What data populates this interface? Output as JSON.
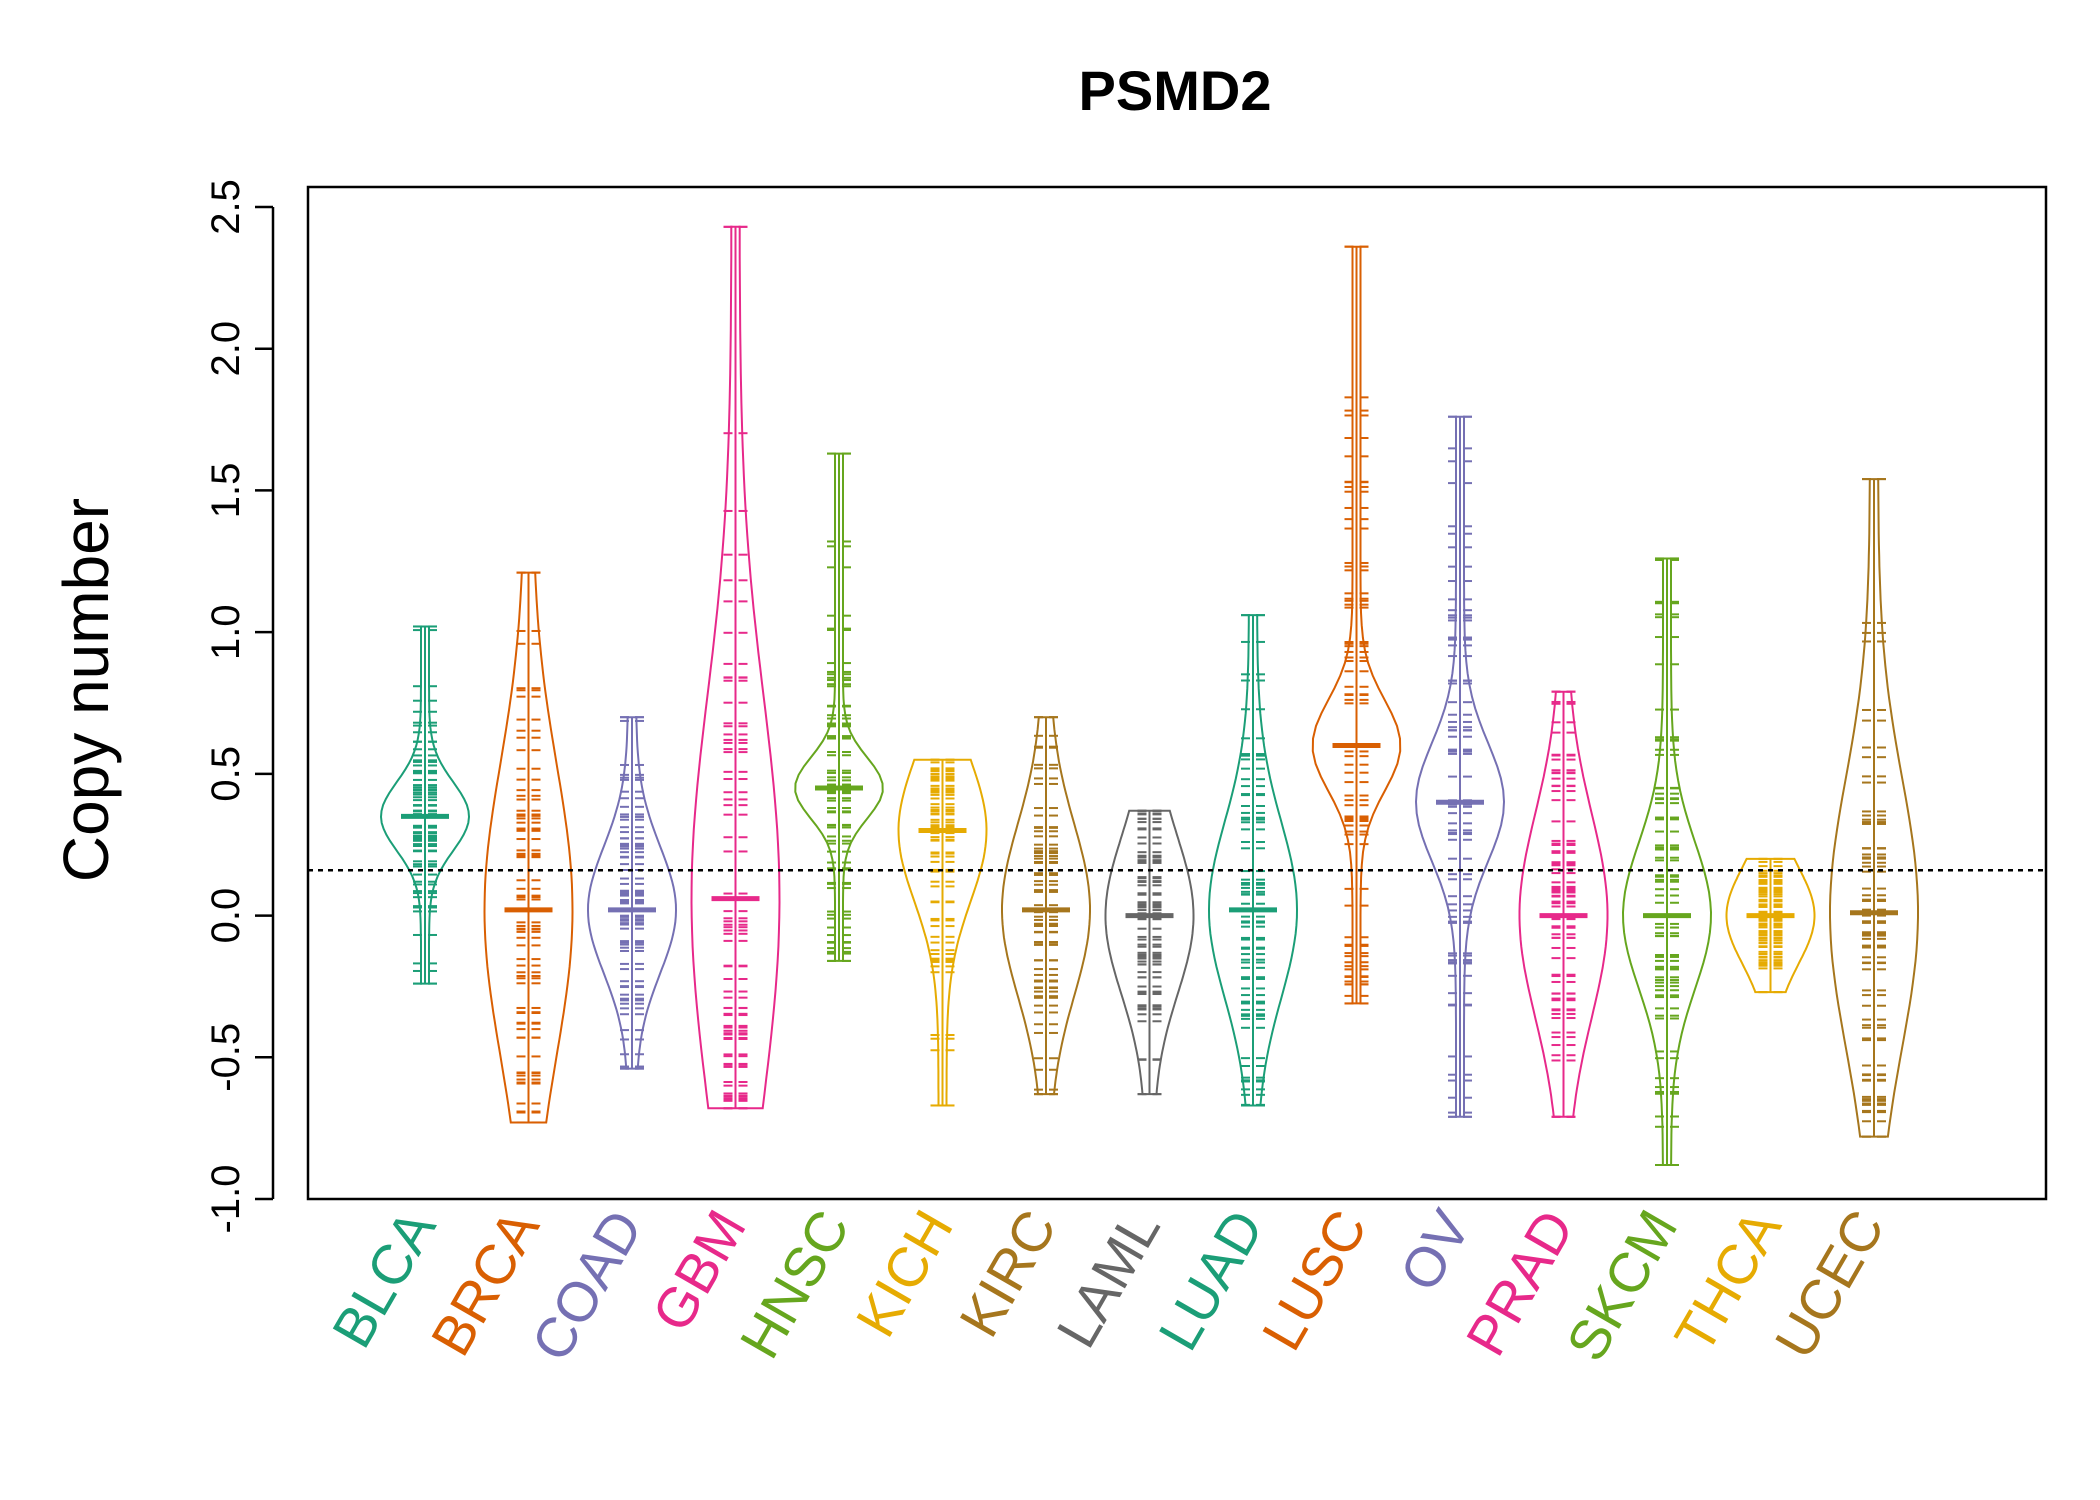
{
  "chart_data": {
    "type": "beanplot",
    "title": "PSMD2",
    "xlabel": "",
    "ylabel": "Copy number",
    "ylim": [
      -1.0,
      2.5
    ],
    "yticks": [
      "-1.0",
      "-0.5",
      "0.0",
      "0.5",
      "1.0",
      "1.5",
      "2.0",
      "2.5"
    ],
    "reference_line": 0.16,
    "categories": [
      {
        "name": "BLCA",
        "color": "#1b9e77",
        "min": -0.24,
        "max": 1.02,
        "mode": 0.35,
        "width": 0.16
      },
      {
        "name": "BRCA",
        "color": "#d95f02",
        "min": -0.73,
        "max": 1.21,
        "mode": 0.02,
        "width": 0.44
      },
      {
        "name": "COAD",
        "color": "#7570b3",
        "min": -0.54,
        "max": 0.7,
        "mode": 0.02,
        "width": 0.3
      },
      {
        "name": "GBM",
        "color": "#e7298a",
        "min": -0.68,
        "max": 2.43,
        "mode": 0.06,
        "width": 0.38
      },
      {
        "name": "HNSC",
        "color": "#66a61e",
        "min": -0.16,
        "max": 1.63,
        "mode": 0.45,
        "width": 0.1
      },
      {
        "name": "KICH",
        "color": "#e6ab02",
        "min": -0.67,
        "max": 0.55,
        "mode": 0.3,
        "width": 0.34
      },
      {
        "name": "KIRC",
        "color": "#a6761d",
        "min": -0.63,
        "max": 0.7,
        "mode": 0.02,
        "width": 0.38
      },
      {
        "name": "LAML",
        "color": "#666666",
        "min": -0.63,
        "max": 0.37,
        "mode": 0.0,
        "width": 0.46
      },
      {
        "name": "LUAD",
        "color": "#1b9e77",
        "min": -0.67,
        "max": 1.06,
        "mode": 0.02,
        "width": 0.3
      },
      {
        "name": "LUSC",
        "color": "#d95f02",
        "min": -0.31,
        "max": 2.36,
        "mode": 0.6,
        "width": 0.1
      },
      {
        "name": "OV",
        "color": "#7570b3",
        "min": -0.71,
        "max": 1.76,
        "mode": 0.4,
        "width": 0.14
      },
      {
        "name": "PRAD",
        "color": "#e7298a",
        "min": -0.71,
        "max": 0.79,
        "mode": 0.0,
        "width": 0.4
      },
      {
        "name": "SKCM",
        "color": "#66a61e",
        "min": -0.88,
        "max": 1.26,
        "mode": 0.0,
        "width": 0.2
      },
      {
        "name": "THCA",
        "color": "#e6ab02",
        "min": -0.27,
        "max": 0.2,
        "mode": 0.0,
        "width": 0.6
      },
      {
        "name": "UCEC",
        "color": "#a6761d",
        "min": -0.78,
        "max": 1.54,
        "mode": 0.01,
        "width": 0.34
      }
    ]
  }
}
